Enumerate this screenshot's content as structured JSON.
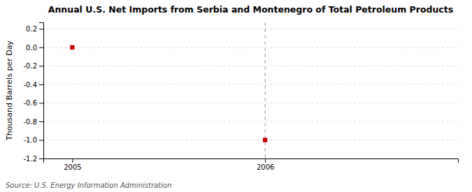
{
  "chart_data": {
    "type": "scatter",
    "title": "Annual U.S. Net Imports from Serbia and Montenegro of Total Petroleum Products",
    "y_label": "Thousand Barrels per Day",
    "source": "Source: U.S. Energy Information Administration",
    "x": [
      2005,
      2006
    ],
    "values": [
      0,
      -1
    ],
    "color": "#cc0000",
    "marker": "square",
    "xlim": [
      2004.85,
      2007.0
    ],
    "ylim": [
      -1.2,
      0.27
    ],
    "xticks": [
      2005,
      2006
    ],
    "yticks": [
      0.2,
      {
        "value": 0.0,
        "label": "0.0"
      },
      -0.2,
      -0.4,
      -0.6,
      -0.8,
      {
        "value": -1.0,
        "label": "-1.0"
      },
      -1.2
    ],
    "vline": 2006,
    "grid": true
  }
}
